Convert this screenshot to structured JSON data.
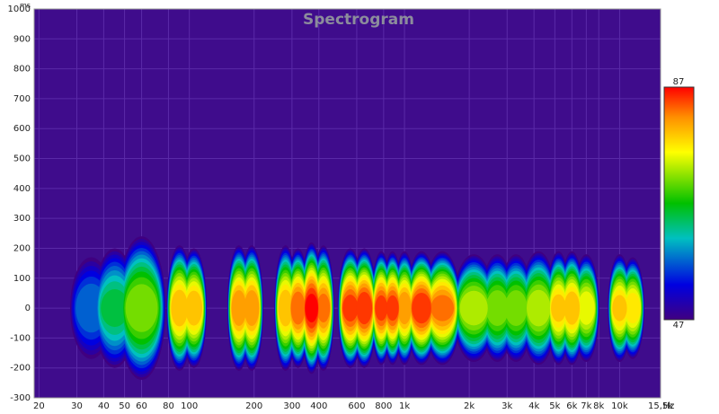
{
  "chart_data": {
    "type": "spectrogram",
    "title": "Spectrogram",
    "y_unit": "ms",
    "x_unit": "Hz",
    "xlog": true,
    "grid": true,
    "background": "#3f0c8c",
    "xlim": [
      19,
      15500
    ],
    "ylim": [
      -300,
      1000
    ],
    "xticks": [
      20,
      30,
      40,
      50,
      60,
      80,
      100,
      200,
      300,
      400,
      600,
      800,
      {
        "value": 1000,
        "label": "1k"
      },
      {
        "value": 2000,
        "label": "2k"
      },
      {
        "value": 3000,
        "label": "3k"
      },
      {
        "value": 4000,
        "label": "4k"
      },
      {
        "value": 5000,
        "label": "5k"
      },
      {
        "value": 6000,
        "label": "6k"
      },
      {
        "value": 7000,
        "label": "7k"
      },
      {
        "value": 8000,
        "label": "8k"
      },
      {
        "value": 10000,
        "label": "10k"
      },
      {
        "value": 15500,
        "label": "15,5k"
      }
    ],
    "yticks": [
      -300,
      -200,
      -100,
      0,
      100,
      200,
      300,
      400,
      500,
      600,
      700,
      800,
      900,
      1000
    ],
    "clim": [
      47,
      87
    ],
    "x": [
      35,
      45,
      60,
      90,
      105,
      170,
      195,
      280,
      320,
      370,
      420,
      560,
      650,
      780,
      880,
      1000,
      1200,
      1500,
      2100,
      2700,
      3300,
      4200,
      5200,
      6000,
      7000,
      10000,
      11500
    ],
    "values": [
      58,
      65,
      72,
      80,
      80,
      82,
      82,
      80,
      84,
      87,
      83,
      85,
      86,
      85,
      85,
      82,
      86,
      83,
      74,
      72,
      72,
      74,
      79,
      80,
      76,
      79,
      78
    ],
    "extent": [
      170,
      200,
      240,
      210,
      200,
      210,
      210,
      210,
      200,
      220,
      210,
      200,
      200,
      190,
      190,
      190,
      190,
      190,
      180,
      180,
      180,
      190,
      190,
      190,
      180,
      180,
      170
    ]
  }
}
